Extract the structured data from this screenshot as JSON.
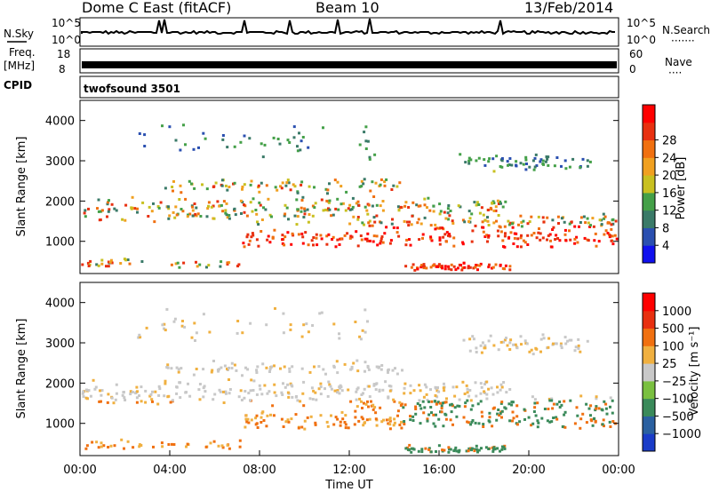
{
  "header": {
    "station": "Dome C East (fitACF)",
    "beam": "Beam 10",
    "date": "13/Feb/2014"
  },
  "chart_data": [
    {
      "type": "line",
      "panel": "noise",
      "left_label": "N.Sky",
      "right_label": "N.Search",
      "left_ticks": [
        "10^5",
        "10^0"
      ],
      "right_ticks": [
        "10^5",
        "10^0"
      ],
      "scale": "log"
    },
    {
      "type": "line",
      "panel": "frequency",
      "left_label": "Freq.",
      "left_unit": "[MHz]",
      "left_ticks": [
        "18",
        "8"
      ],
      "right_label": "Nave",
      "right_ticks": [
        "60",
        "0"
      ],
      "cpid_label": "CPID",
      "cpid_value": "twofsound 3501"
    },
    {
      "type": "heatmap",
      "panel": "power",
      "xlabel": "",
      "ylabel": "Slant Range [km]",
      "ylim": [
        200,
        4500
      ],
      "yticks": [
        1000,
        2000,
        3000,
        4000
      ],
      "colorbar_label": "Power [dB]",
      "colorbar_ticks": [
        4,
        8,
        12,
        16,
        20,
        24,
        28
      ],
      "colors": [
        "#1010ee",
        "#2a4fb0",
        "#3a7a68",
        "#44a048",
        "#c8c020",
        "#f0a020",
        "#f07010",
        "#e83010",
        "#ff0000"
      ]
    },
    {
      "type": "heatmap",
      "panel": "velocity",
      "xlabel": "Time UT",
      "ylabel": "Slant Range [km]",
      "ylim": [
        200,
        4500
      ],
      "yticks": [
        1000,
        2000,
        3000,
        4000
      ],
      "xticks": [
        "00:00",
        "04:00",
        "08:00",
        "12:00",
        "16:00",
        "20:00",
        "00:00"
      ],
      "colorbar_label": "Velocity [m s⁻¹]",
      "colorbar_ticks": [
        "1000",
        "500",
        "100",
        "25",
        "−25",
        "−100",
        "−500",
        "−1000"
      ],
      "colors": [
        "#1a3cc8",
        "#2a60a0",
        "#3a8a5a",
        "#7ac040",
        "#c8c8c8",
        "#f0b040",
        "#f07010",
        "#e83010",
        "#ff0000"
      ]
    }
  ]
}
